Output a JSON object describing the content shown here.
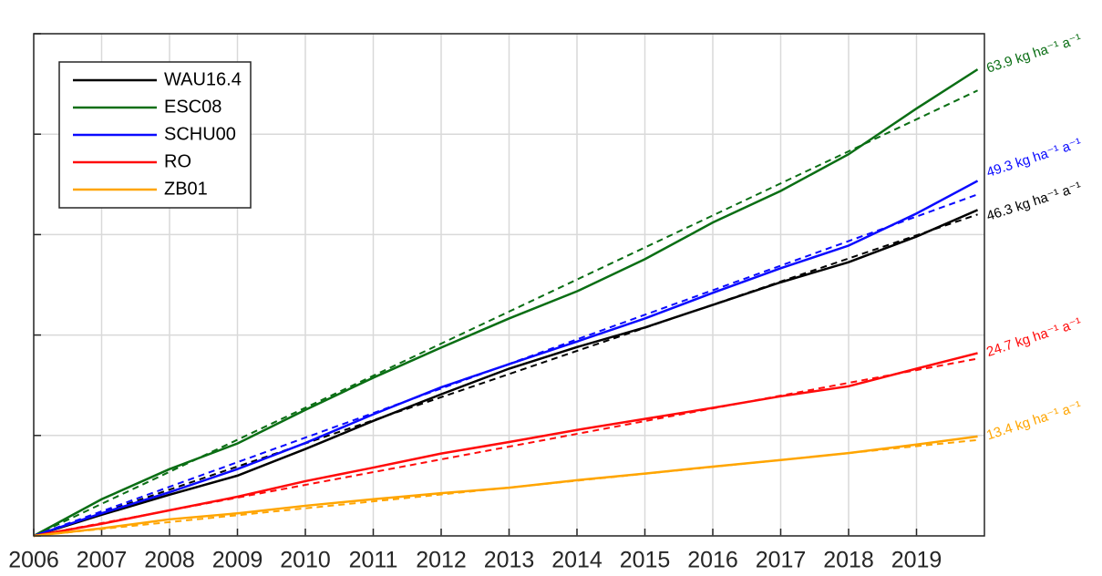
{
  "chart_data": {
    "type": "line",
    "x": [
      2006,
      2007,
      2008,
      2009,
      2010,
      2011,
      2012,
      2013,
      2014,
      2015,
      2016,
      2017,
      2018,
      2019,
      2019.9
    ],
    "series": [
      {
        "name": "WAU16.4",
        "color": "#000000",
        "values": [
          0,
          42,
          82,
          120,
          173,
          229,
          282,
          333,
          376,
          415,
          460,
          505,
          545,
          596,
          649
        ],
        "trend": [
          0,
          640
        ],
        "label": "46.3 kg ha⁻¹ a⁻¹"
      },
      {
        "name": "ESC08",
        "color": "#0a6e14",
        "values": [
          0,
          73,
          133,
          184,
          251,
          315,
          375,
          433,
          487,
          551,
          624,
          687,
          760,
          851,
          929
        ],
        "trend": [
          0,
          887
        ],
        "label": "63.9 kg ha⁻¹ a⁻¹"
      },
      {
        "name": "SCHU00",
        "color": "#0a0aff",
        "values": [
          0,
          45,
          87,
          133,
          185,
          242,
          296,
          342,
          387,
          433,
          484,
          533,
          578,
          642,
          707
        ],
        "trend": [
          0,
          680
        ],
        "label": "49.3 kg ha⁻¹ a⁻¹"
      },
      {
        "name": "RO",
        "color": "#ff0a0a",
        "values": [
          0,
          24,
          51,
          78,
          109,
          136,
          164,
          187,
          211,
          233,
          255,
          278,
          298,
          333,
          364
        ],
        "trend": [
          0,
          353
        ],
        "label": "24.7 kg ha⁻¹ a⁻¹"
      },
      {
        "name": "ZB01",
        "color": "#ffa500",
        "values": [
          0,
          15,
          33,
          45,
          60,
          73,
          85,
          96,
          111,
          124,
          138,
          151,
          165,
          182,
          198
        ],
        "trend": [
          0,
          191
        ],
        "label": "13.4 kg ha⁻¹ a⁻¹"
      }
    ],
    "trend_x": [
      2006,
      2019.9
    ],
    "xlim": [
      2006,
      2020
    ],
    "xticks": [
      2006,
      2007,
      2008,
      2009,
      2010,
      2011,
      2012,
      2013,
      2014,
      2015,
      2016,
      2017,
      2018,
      2019
    ],
    "ylim": [
      0,
      1000
    ],
    "yticks": [
      0,
      200,
      400,
      600,
      800,
      1000
    ],
    "grid": true,
    "legend": "upper left"
  }
}
